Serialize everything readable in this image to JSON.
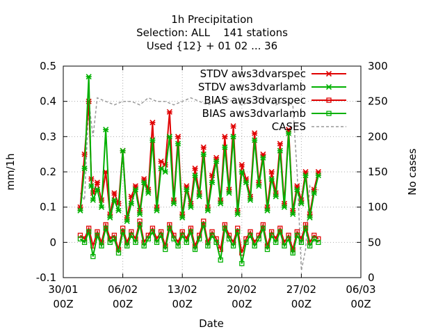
{
  "chart_data": {
    "type": "line",
    "title_lines": [
      "1h Precipitation",
      "Selection: ALL    141 stations",
      "Used {12} + 01 02 ... 36"
    ],
    "xlabel": "Date",
    "ylabel_left": "mm/1h",
    "ylabel_right": "No cases",
    "xlim": [
      0,
      32
    ],
    "ylim_left": [
      -0.1,
      0.5
    ],
    "ylim_right": [
      0,
      300
    ],
    "x_ticks": [
      {
        "x": 0,
        "line1": "30/01",
        "line2": "00Z"
      },
      {
        "x": 7,
        "line1": "06/02",
        "line2": "00Z"
      },
      {
        "x": 14,
        "line1": "13/02",
        "line2": "00Z"
      },
      {
        "x": 21,
        "line1": "20/02",
        "line2": "00Z"
      },
      {
        "x": 28,
        "line1": "27/02",
        "line2": "00Z"
      },
      {
        "x": 35,
        "line1": "06/03",
        "line2": "00Z"
      }
    ],
    "y_ticks_left": [
      "-0.1",
      "0",
      "0.1",
      "0.2",
      "0.3",
      "0.4",
      "0.5"
    ],
    "y_ticks_right": [
      "0",
      "50",
      "100",
      "150",
      "200",
      "250",
      "300"
    ],
    "grid": true,
    "legend_position": "top-right",
    "series": [
      {
        "name": "STDV aws3dvarspec",
        "color": "#e00000",
        "marker": "star",
        "axis": "left",
        "x": [
          2.0,
          2.5,
          3.0,
          3.3,
          3.5,
          4.0,
          4.5,
          5.0,
          5.5,
          6.0,
          6.5,
          7.0,
          7.5,
          8.0,
          8.5,
          9.0,
          9.5,
          10.0,
          10.5,
          11.0,
          11.5,
          12.0,
          12.5,
          13.0,
          13.5,
          14.0,
          14.5,
          15.0,
          15.5,
          16.0,
          16.5,
          17.0,
          17.5,
          18.0,
          18.5,
          19.0,
          19.5,
          20.0,
          20.5,
          21.0,
          21.5,
          22.0,
          22.5,
          23.0,
          23.5,
          24.0,
          24.5,
          25.0,
          25.5,
          26.0,
          26.5,
          27.0,
          27.5,
          28.0,
          28.5,
          29.0,
          29.5,
          30.0
        ],
        "values": [
          0.1,
          0.25,
          0.4,
          0.18,
          0.14,
          0.17,
          0.12,
          0.2,
          0.08,
          0.14,
          0.11,
          0.26,
          0.07,
          0.13,
          0.16,
          0.09,
          0.18,
          0.15,
          0.34,
          0.1,
          0.23,
          0.22,
          0.37,
          0.12,
          0.3,
          0.08,
          0.16,
          0.11,
          0.21,
          0.14,
          0.27,
          0.1,
          0.19,
          0.24,
          0.12,
          0.3,
          0.15,
          0.33,
          0.09,
          0.22,
          0.18,
          0.13,
          0.31,
          0.17,
          0.25,
          0.1,
          0.2,
          0.14,
          0.28,
          0.11,
          0.32,
          0.09,
          0.16,
          0.12,
          0.2,
          0.08,
          0.15,
          0.2
        ]
      },
      {
        "name": "STDV aws3dvarlamb",
        "color": "#00b000",
        "marker": "star",
        "axis": "left",
        "x": [
          2.0,
          2.5,
          3.0,
          3.3,
          3.5,
          4.0,
          4.5,
          5.0,
          5.5,
          6.0,
          6.5,
          7.0,
          7.5,
          8.0,
          8.5,
          9.0,
          9.5,
          10.0,
          10.5,
          11.0,
          11.5,
          12.0,
          12.5,
          13.0,
          13.5,
          14.0,
          14.5,
          15.0,
          15.5,
          16.0,
          16.5,
          17.0,
          17.5,
          18.0,
          18.5,
          19.0,
          19.5,
          20.0,
          20.5,
          21.0,
          21.5,
          22.0,
          22.5,
          23.0,
          23.5,
          24.0,
          24.5,
          25.0,
          25.5,
          26.0,
          26.5,
          27.0,
          27.5,
          28.0,
          28.5,
          29.0,
          29.5,
          30.0
        ],
        "values": [
          0.09,
          0.21,
          0.47,
          0.16,
          0.12,
          0.15,
          0.1,
          0.32,
          0.07,
          0.12,
          0.09,
          0.26,
          0.06,
          0.11,
          0.15,
          0.08,
          0.17,
          0.14,
          0.29,
          0.09,
          0.21,
          0.2,
          0.3,
          0.11,
          0.28,
          0.07,
          0.15,
          0.1,
          0.19,
          0.13,
          0.25,
          0.09,
          0.17,
          0.23,
          0.11,
          0.27,
          0.14,
          0.3,
          0.08,
          0.2,
          0.17,
          0.12,
          0.29,
          0.16,
          0.24,
          0.09,
          0.18,
          0.13,
          0.26,
          0.1,
          0.31,
          0.08,
          0.15,
          0.11,
          0.19,
          0.07,
          0.14,
          0.19
        ]
      },
      {
        "name": "BIAS aws3dvarspec",
        "color": "#e00000",
        "marker": "square",
        "axis": "left",
        "x": [
          2.0,
          2.5,
          3.0,
          3.5,
          4.0,
          4.5,
          5.0,
          5.5,
          6.0,
          6.5,
          7.0,
          7.5,
          8.0,
          8.5,
          9.0,
          9.5,
          10.0,
          10.5,
          11.0,
          11.5,
          12.0,
          12.5,
          13.0,
          13.5,
          14.0,
          14.5,
          15.0,
          15.5,
          16.0,
          16.5,
          17.0,
          17.5,
          18.0,
          18.5,
          19.0,
          19.5,
          20.0,
          20.5,
          21.0,
          21.5,
          22.0,
          22.5,
          23.0,
          23.5,
          24.0,
          24.5,
          25.0,
          25.5,
          26.0,
          26.5,
          27.0,
          27.5,
          28.0,
          28.5,
          29.0,
          29.5,
          30.0
        ],
        "values": [
          0.02,
          0.01,
          0.04,
          -0.01,
          0.03,
          0.0,
          0.05,
          0.01,
          0.02,
          -0.02,
          0.04,
          0.0,
          0.03,
          0.01,
          0.06,
          0.0,
          0.02,
          0.04,
          0.01,
          0.03,
          -0.01,
          0.05,
          0.02,
          0.0,
          0.03,
          0.01,
          0.04,
          -0.01,
          0.02,
          0.06,
          0.0,
          0.03,
          0.01,
          -0.02,
          0.05,
          0.02,
          0.0,
          0.04,
          -0.03,
          0.01,
          0.03,
          0.0,
          0.02,
          0.05,
          -0.01,
          0.03,
          0.01,
          0.04,
          0.0,
          0.02,
          -0.02,
          0.03,
          0.01,
          0.05,
          0.0,
          0.02,
          0.01
        ]
      },
      {
        "name": "BIAS aws3dvarlamb",
        "color": "#00b000",
        "marker": "square",
        "axis": "left",
        "x": [
          2.0,
          2.5,
          3.0,
          3.5,
          4.0,
          4.5,
          5.0,
          5.5,
          6.0,
          6.5,
          7.0,
          7.5,
          8.0,
          8.5,
          9.0,
          9.5,
          10.0,
          10.5,
          11.0,
          11.5,
          12.0,
          12.5,
          13.0,
          13.5,
          14.0,
          14.5,
          15.0,
          15.5,
          16.0,
          16.5,
          17.0,
          17.5,
          18.0,
          18.5,
          19.0,
          19.5,
          20.0,
          20.5,
          21.0,
          21.5,
          22.0,
          22.5,
          23.0,
          23.5,
          24.0,
          24.5,
          25.0,
          25.5,
          26.0,
          26.5,
          27.0,
          27.5,
          28.0,
          28.5,
          29.0,
          29.5,
          30.0
        ],
        "values": [
          0.01,
          0.0,
          0.03,
          -0.04,
          0.02,
          -0.01,
          0.04,
          0.0,
          0.01,
          -0.03,
          0.03,
          -0.01,
          0.02,
          0.0,
          0.05,
          -0.01,
          0.01,
          0.03,
          0.0,
          0.02,
          -0.02,
          0.04,
          0.01,
          -0.01,
          0.02,
          0.0,
          0.03,
          -0.02,
          0.01,
          0.05,
          -0.01,
          0.02,
          0.0,
          -0.05,
          0.04,
          0.01,
          -0.01,
          0.03,
          -0.06,
          0.0,
          0.02,
          -0.01,
          0.01,
          0.04,
          -0.02,
          0.02,
          0.0,
          0.03,
          -0.01,
          0.01,
          -0.03,
          0.02,
          0.0,
          0.04,
          -0.01,
          0.01,
          0.0
        ]
      },
      {
        "name": "CASES",
        "color": "#999999",
        "marker": "none",
        "axis": "right",
        "x": [
          2.0,
          2.5,
          3.0,
          3.5,
          4.0,
          5.0,
          6.0,
          7.0,
          8.0,
          9.0,
          10.0,
          11.0,
          12.0,
          13.0,
          14.0,
          15.0,
          16.0,
          17.0,
          18.0,
          19.0,
          20.0,
          21.0,
          22.0,
          23.0,
          24.0,
          25.0,
          26.0,
          27.0,
          27.5,
          28.0,
          28.5,
          29.0,
          29.5,
          30.0
        ],
        "values": [
          120,
          110,
          250,
          200,
          255,
          250,
          245,
          250,
          250,
          245,
          255,
          250,
          250,
          245,
          250,
          255,
          250,
          245,
          250,
          255,
          250,
          245,
          250,
          255,
          250,
          245,
          250,
          245,
          150,
          10,
          40,
          130,
          120,
          125
        ]
      }
    ]
  }
}
